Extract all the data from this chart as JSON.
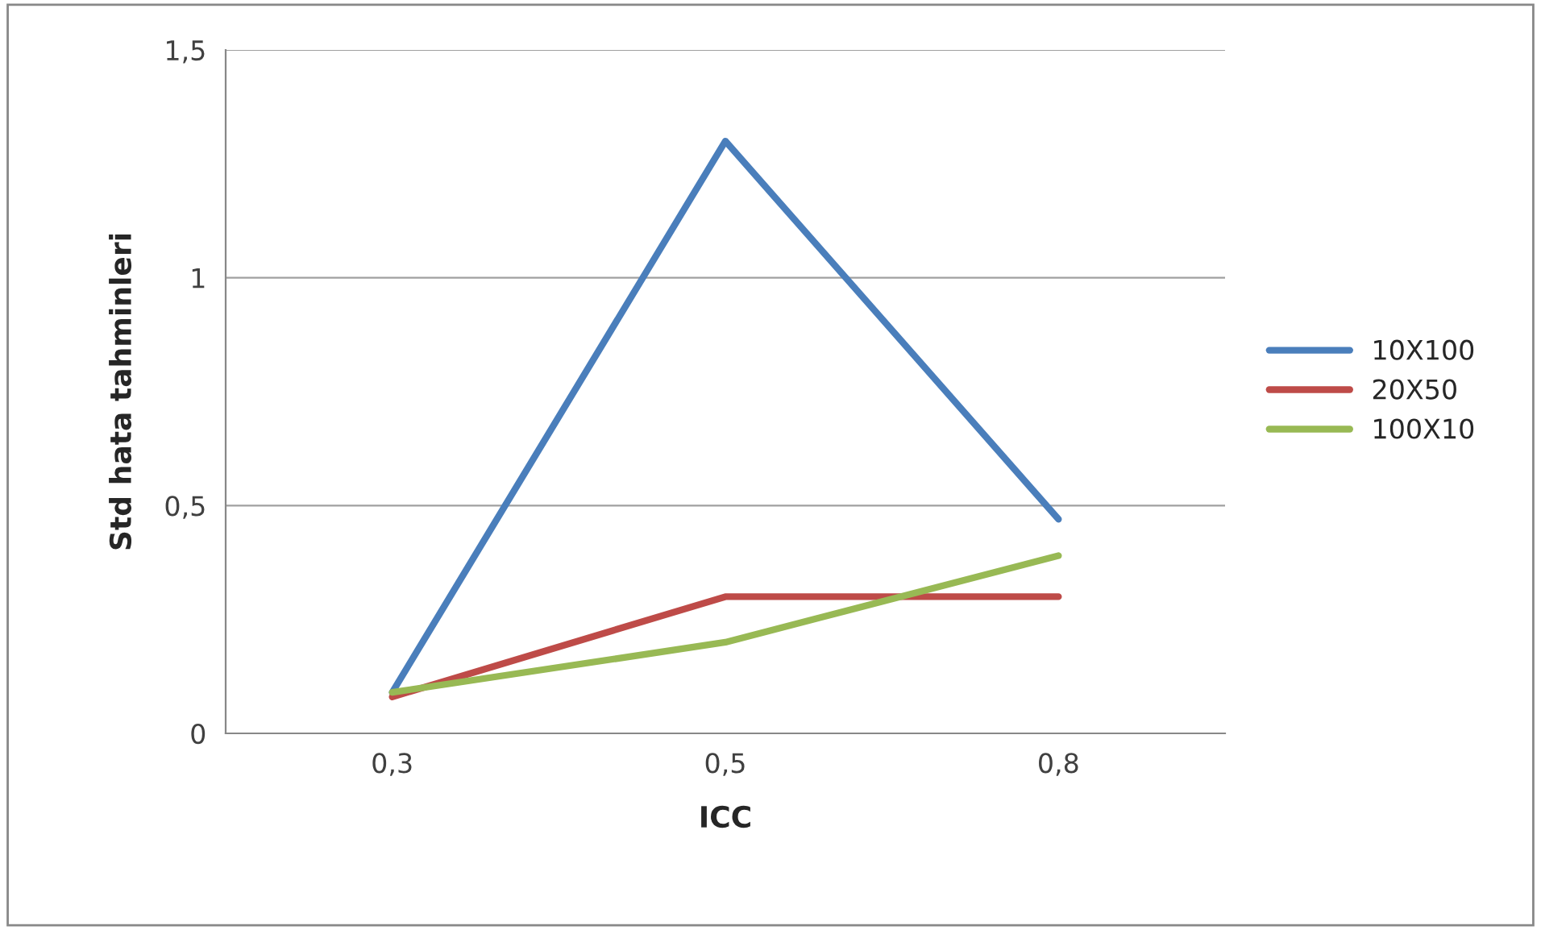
{
  "chart_data": {
    "type": "line",
    "xlabel": "ICC",
    "ylabel": "Std hata tahminleri",
    "categories": [
      "0,3",
      "0,5",
      "0,8"
    ],
    "series": [
      {
        "name": "10X100",
        "color": "#4a7ebb",
        "values": [
          0.09,
          1.3,
          0.47
        ]
      },
      {
        "name": "20X50",
        "color": "#be4b48",
        "values": [
          0.08,
          0.3,
          0.3
        ]
      },
      {
        "name": "100X10",
        "color": "#98b954",
        "values": [
          0.09,
          0.2,
          0.39
        ]
      }
    ],
    "ylim": [
      0,
      1.5
    ],
    "yticks": [
      0,
      {
        "value": 0.5,
        "label": "0,5"
      },
      1,
      {
        "value": 1.5,
        "label": "1,5"
      }
    ],
    "grid": "y",
    "legend": "right",
    "marker": "none",
    "line_style": "solid"
  }
}
